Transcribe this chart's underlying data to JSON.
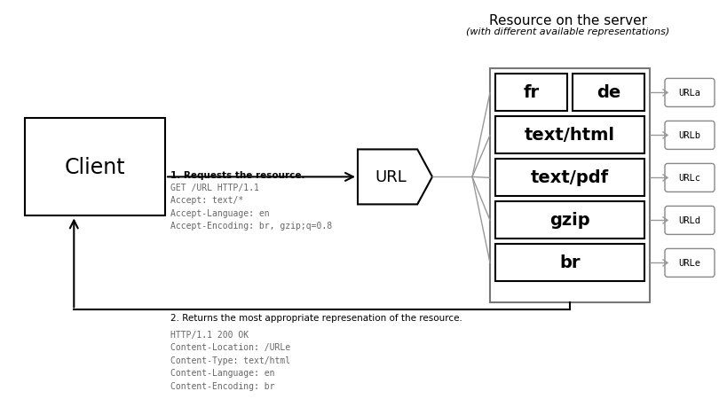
{
  "bg_color": "#ffffff",
  "title_main": "Resource on the server",
  "title_sub": "(with different available representations)",
  "client_label": "Client",
  "url_label": "URL",
  "step1_bold": "1. Requests the resource.",
  "step1_mono": "GET /URL HTTP/1.1\nAccept: text/*\nAccept-Language: en\nAccept-Encoding: br, gzip;q=0.8",
  "step2_bold": "2. Returns the most appropriate represenation of the resource.",
  "step2_mono": "HTTP/1.1 200 OK\nContent-Location: /URLe\nContent-Type: text/html\nContent-Language: en\nContent-Encoding: br",
  "url_labels": [
    "URLa",
    "URLb",
    "URLc",
    "URLd",
    "URLe"
  ],
  "text_color": "#000000",
  "mono_color": "#666666",
  "box_edge_color": "#000000",
  "resource_box_color": "#777777",
  "arrow_color": "#000000",
  "connector_color": "#999999"
}
